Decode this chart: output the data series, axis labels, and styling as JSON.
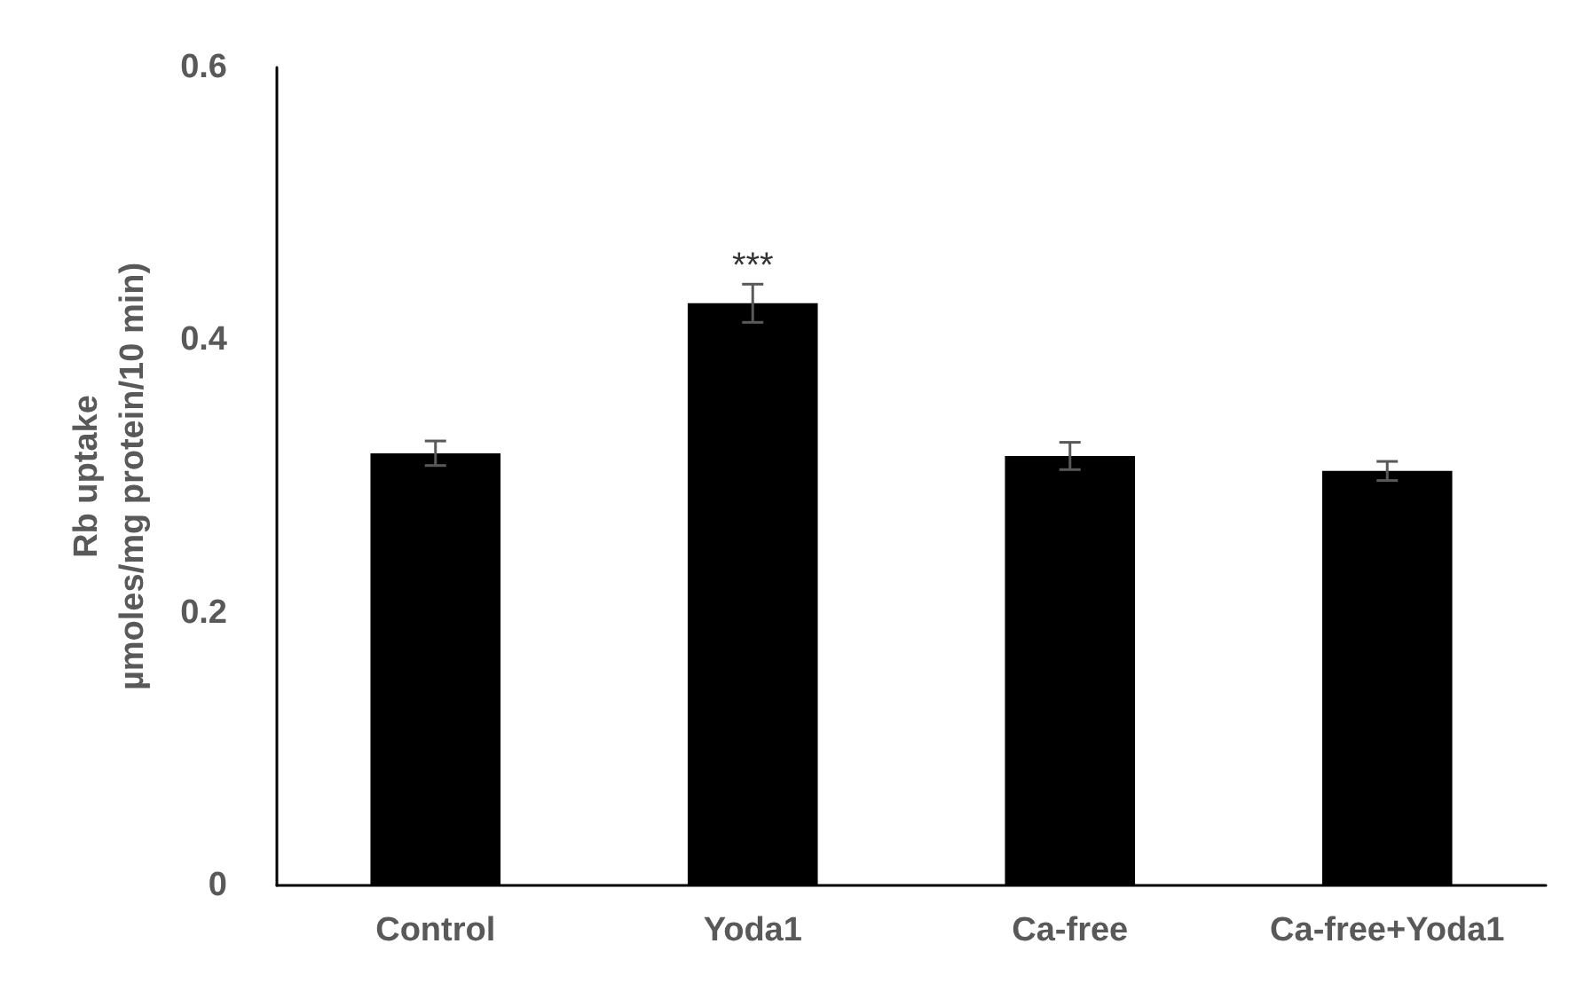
{
  "chart_data": {
    "type": "bar",
    "ylabel": "Rb uptake\nµmoles/mg protein/10 min)",
    "categories": [
      "Control",
      "Yoda1",
      "Ca-free",
      "Ca-free+Yoda1"
    ],
    "values": [
      0.317,
      0.427,
      0.315,
      0.304
    ],
    "errors": [
      0.009,
      0.014,
      0.01,
      0.007
    ],
    "color": "#000000",
    "ylim": [
      0,
      0.6
    ],
    "yticks": [
      0,
      0.2,
      0.4,
      0.6
    ],
    "grid": false,
    "annotations": [
      {
        "text": "***",
        "x": "Yoda1",
        "y": 0.441
      }
    ]
  }
}
